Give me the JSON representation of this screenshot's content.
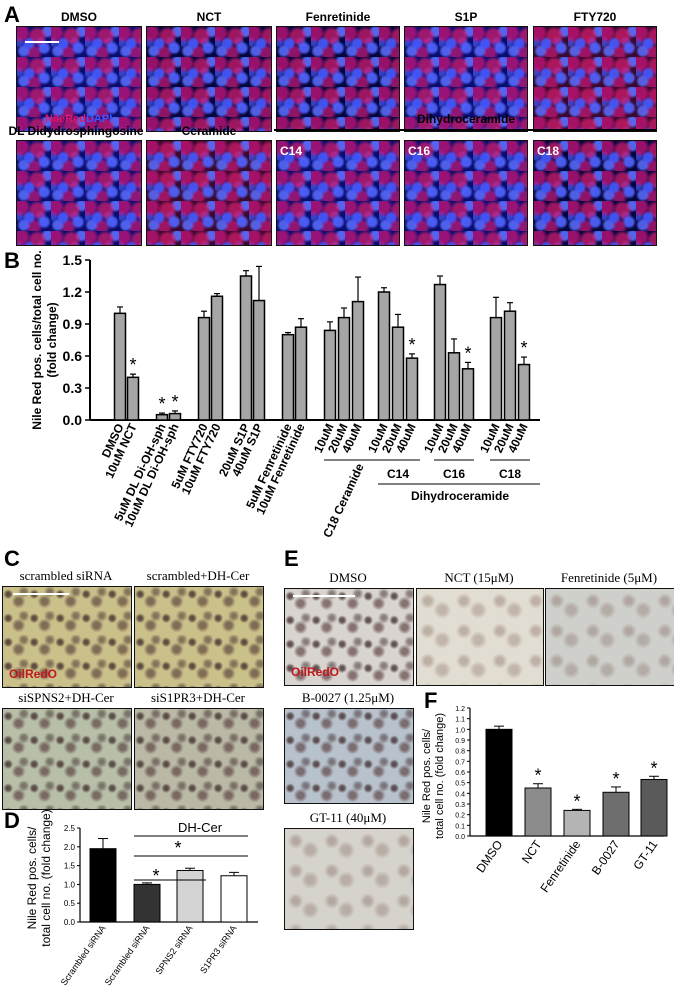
{
  "panel_a": {
    "label": "A",
    "row1": [
      "DMSO",
      "NCT",
      "Fenretinide",
      "S1P",
      "FTY720"
    ],
    "row2": [
      "DL Didydrosphingosine",
      "Ceramide"
    ],
    "dihydro_header": "Dihydroceramide",
    "inset_labels": [
      "C14",
      "C16",
      "C18"
    ],
    "stain_red": "NileRed",
    "stain_blue": "DAPI",
    "colors": {
      "red": "#d4145a",
      "blue": "#2d3bd6"
    }
  },
  "panel_b": {
    "label": "B",
    "groups": [
      "C14",
      "C16",
      "C18"
    ],
    "dihydro_label": "Dihydroceramide"
  },
  "panel_c": {
    "label": "C",
    "titles": [
      "scrambled siRNA",
      "scrambled+DH-Cer",
      "siSPNS2+DH-Cer",
      "siS1PR3+DH-Cer"
    ],
    "stain": "OilRedO"
  },
  "panel_d": {
    "label": "D",
    "bracket_label": "DH-Cer"
  },
  "panel_e": {
    "label": "E",
    "titles": [
      "DMSO",
      "NCT (15μM)",
      "Fenretinide (5μM)",
      "B-0027 (1.25μM)",
      "GT-11 (40μM)"
    ],
    "stain": "OilRedO"
  },
  "panel_f": {
    "label": "F"
  },
  "chart_data": [
    {
      "id": "B",
      "type": "bar",
      "ylabel": "Nile Red pos. cells/total cell no. (fold change)",
      "ylim": [
        0,
        1.5
      ],
      "yticks": [
        "0.0",
        "0.3",
        "0.6",
        "0.9",
        "1.2",
        "1.5"
      ],
      "categories": [
        "DMSO",
        "10uM NCT",
        "5uM DL Di-OH-sph",
        "10uM DL Di-OH-sph",
        "5uM FTY720",
        "10uM FTY720",
        "20uM S1P",
        "40uM S1P",
        "5uM Fenretinide",
        "10uM Fenretinide",
        "10uM",
        "20uM",
        "40uM",
        "10uM",
        "20uM",
        "40uM",
        "10uM",
        "20uM",
        "40uM",
        "10uM",
        "20uM",
        "40uM"
      ],
      "values": [
        1.0,
        0.4,
        0.05,
        0.06,
        0.96,
        1.16,
        1.35,
        1.12,
        0.8,
        0.87,
        0.84,
        0.96,
        1.11,
        1.2,
        0.87,
        0.58,
        1.27,
        0.63,
        0.48,
        0.96,
        1.02,
        0.52
      ],
      "errors": [
        0.06,
        0.03,
        0.015,
        0.025,
        0.06,
        0.025,
        0.05,
        0.32,
        0.02,
        0.08,
        0.08,
        0.09,
        0.23,
        0.04,
        0.12,
        0.04,
        0.08,
        0.13,
        0.06,
        0.19,
        0.08,
        0.07
      ],
      "significant": [
        false,
        true,
        true,
        true,
        false,
        false,
        false,
        false,
        false,
        false,
        false,
        false,
        false,
        false,
        false,
        true,
        false,
        false,
        true,
        false,
        false,
        true
      ],
      "group_labels": [
        "C18 Ceramide",
        "C14",
        "C16",
        "C18",
        "Dihydroceramide"
      ]
    },
    {
      "id": "D",
      "type": "bar",
      "ylabel": "Nile Red pos. cells/ total cell no. (fold change)",
      "ylim": [
        0,
        2.5
      ],
      "yticks": [
        "0.0",
        "0.5",
        "1.0",
        "1.5",
        "2.0",
        "2.5"
      ],
      "categories": [
        "Scrambled siRNA",
        "Scrambled siRNA",
        "SPNS2 siRNA",
        "S1PR3 siRNA"
      ],
      "values": [
        1.95,
        1.0,
        1.37,
        1.23
      ],
      "errors": [
        0.27,
        0.04,
        0.06,
        0.09
      ],
      "bar_colors": [
        "#000000",
        "#333333",
        "#d4d4d4",
        "#ffffff"
      ]
    },
    {
      "id": "F",
      "type": "bar",
      "ylabel": "Nile Red pos. cells/ total cell no. (fold change)",
      "ylim": [
        0,
        1.2
      ],
      "yticks": [
        "0.0",
        "0.1",
        "0.2",
        "0.3",
        "0.4",
        "0.5",
        "0.6",
        "0.7",
        "0.8",
        "0.9",
        "1.0",
        "1.1",
        "1.2"
      ],
      "categories": [
        "DMSO",
        "NCT",
        "Fenretinide",
        "B-0027",
        "GT-11"
      ],
      "values": [
        1.0,
        0.45,
        0.24,
        0.41,
        0.53
      ],
      "errors": [
        0.03,
        0.04,
        0.01,
        0.05,
        0.03
      ],
      "significant": [
        false,
        true,
        true,
        true,
        true
      ],
      "bar_colors": [
        "#000000",
        "#8c8c8c",
        "#b4b4b4",
        "#6e6e6e",
        "#5a5a5a"
      ]
    }
  ]
}
